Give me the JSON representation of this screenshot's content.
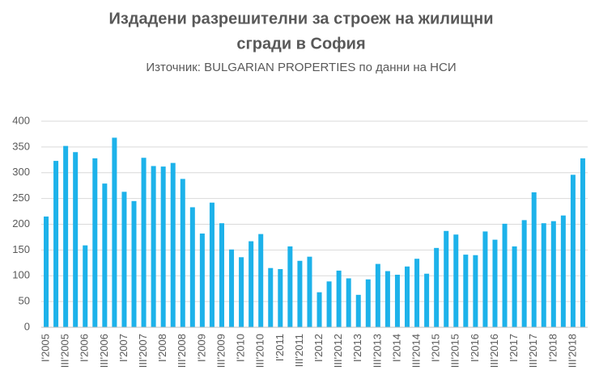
{
  "chart_data": {
    "type": "bar",
    "title": [
      "Издадени разрешителни за строеж на жилищни",
      "сгради в София"
    ],
    "subtitle": "Източник: BULGARIAN PROPERTIES по данни на НСИ",
    "categories": [
      "I'2005",
      null,
      "III'2005",
      null,
      "I'2006",
      null,
      "III'2006",
      null,
      "I'2007",
      null,
      "III'2007",
      null,
      "I'2008",
      null,
      "III'2008",
      null,
      "I'2009",
      null,
      "III'2009",
      null,
      "I'2010",
      null,
      "III'2010",
      null,
      "I'2011",
      null,
      "III'2011",
      null,
      "I'2012",
      null,
      "III'2012",
      null,
      "I'2013",
      null,
      "III'2013",
      null,
      "I'2014",
      null,
      "III'2014",
      null,
      "I'2015",
      null,
      "III'2015",
      null,
      "I'2016",
      null,
      "III'2016",
      null,
      "I'2017",
      null,
      "III'2017",
      null,
      "I'2018",
      null,
      "III'2018",
      null
    ],
    "values": [
      215,
      323,
      352,
      340,
      159,
      328,
      279,
      368,
      263,
      245,
      329,
      313,
      312,
      319,
      288,
      233,
      182,
      242,
      202,
      151,
      136,
      167,
      181,
      115,
      113,
      157,
      129,
      137,
      68,
      89,
      110,
      95,
      63,
      93,
      123,
      109,
      102,
      118,
      133,
      104,
      154,
      187,
      180,
      141,
      140,
      186,
      170,
      201,
      157,
      208,
      262,
      202,
      206,
      217,
      296,
      328
    ],
    "color": "#1db2ea",
    "ylim": [
      0,
      400
    ],
    "yticks": [
      0,
      50,
      100,
      150,
      200,
      250,
      300,
      350,
      400
    ],
    "grid": true
  }
}
